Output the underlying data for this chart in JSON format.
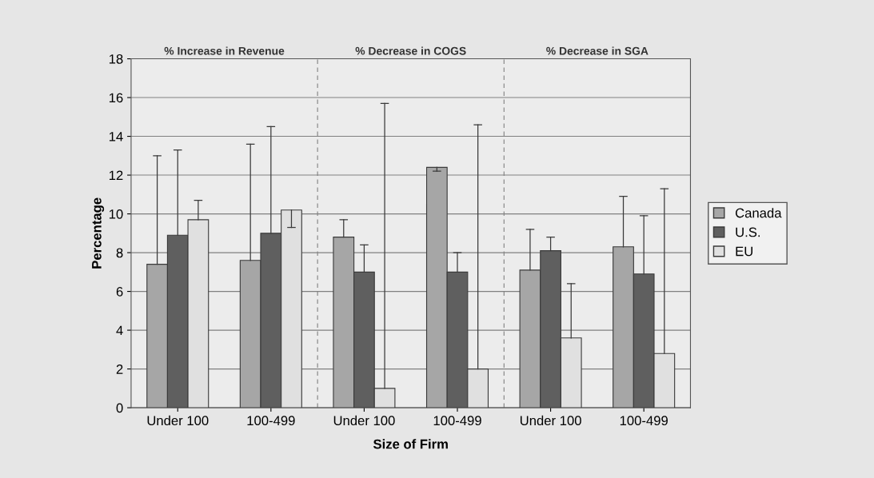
{
  "chart_data": {
    "type": "bar",
    "xlabel": "Size of Firm",
    "ylabel": "Percentage",
    "categories": [
      "Under 100",
      "100-499",
      "Under 100",
      "100-499",
      "Under 100",
      "100-499"
    ],
    "series": [
      {
        "name": "Canada",
        "color": "#a6a6a6",
        "values": [
          7.4,
          7.6,
          8.8,
          12.4,
          7.1,
          8.3
        ],
        "errors": [
          [
            7.4,
            13.0
          ],
          [
            7.6,
            13.6
          ],
          [
            8.8,
            9.7
          ],
          [
            12.2,
            12.4
          ],
          [
            7.1,
            9.2
          ],
          [
            8.3,
            10.9
          ]
        ]
      },
      {
        "name": "U.S.",
        "color": "#5f5f5f",
        "values": [
          8.9,
          9.0,
          7.0,
          7.0,
          8.1,
          6.9
        ],
        "errors": [
          [
            8.9,
            13.3
          ],
          [
            9.0,
            14.5
          ],
          [
            7.0,
            8.4
          ],
          [
            7.0,
            8.0
          ],
          [
            8.1,
            8.8
          ],
          [
            6.9,
            9.9
          ]
        ]
      },
      {
        "name": "EU",
        "color": "#e0e0e0",
        "values": [
          9.7,
          10.2,
          1.0,
          2.0,
          3.6,
          2.8
        ],
        "errors": [
          [
            9.7,
            10.7
          ],
          [
            9.3,
            10.2
          ],
          [
            1.0,
            15.7
          ],
          [
            2.0,
            14.6
          ],
          [
            3.6,
            6.4
          ],
          [
            2.8,
            11.3
          ]
        ]
      }
    ],
    "annotations": [
      "% Increase in Revenue",
      "% Decrease in COGS",
      "% Decrease in SGA"
    ],
    "ylim": [
      0,
      18
    ],
    "yticks": [
      0,
      2,
      4,
      6,
      8,
      10,
      12,
      14,
      16,
      18
    ],
    "grid": "y",
    "legend": "right"
  }
}
